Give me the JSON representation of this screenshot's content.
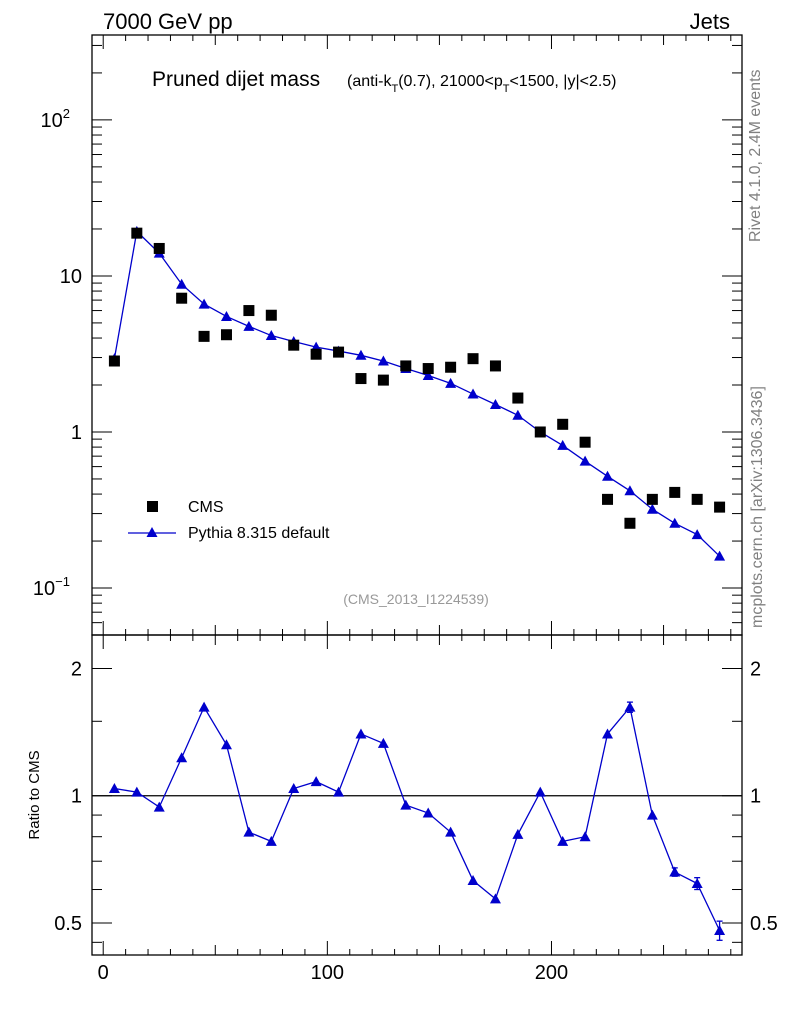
{
  "header": {
    "energy_label": "7000 GeV pp",
    "category_label": "Jets"
  },
  "side": {
    "rivet_label": "Rivet 4.1.0,  2.4M events",
    "site_label": "mcplots.cern.ch [arXiv:1306.3436]"
  },
  "chart_data": [
    {
      "type": "line",
      "title_main": "Pruned dijet mass",
      "title_sub": "(anti-k",
      "title_sub_t": "T",
      "title_sub_mid": "(0.7), 21000<p",
      "title_sub_t2": "T",
      "title_sub_end": "<1500, |y|<2.5)",
      "analysis_id": "(CMS_2013_I1224539)",
      "y_scale": "log",
      "xlim": [
        -5,
        285
      ],
      "ylim": [
        0.05,
        350
      ],
      "y_ticks": [
        {
          "value": 0.1,
          "base": "10",
          "exp": "−1"
        },
        {
          "value": 1,
          "base": "1",
          "exp": ""
        },
        {
          "value": 10,
          "base": "10",
          "exp": ""
        },
        {
          "value": 100,
          "base": "10",
          "exp": "2"
        }
      ],
      "legend_position": "bottom-left",
      "series": [
        {
          "name": "CMS",
          "marker": "square",
          "color": "#000000",
          "x": [
            5,
            15,
            25,
            35,
            45,
            55,
            65,
            75,
            85,
            95,
            105,
            115,
            125,
            135,
            145,
            155,
            165,
            175,
            185,
            195,
            205,
            215,
            225,
            235,
            245,
            255,
            265,
            275
          ],
          "values": [
            2.85,
            18.8,
            15.0,
            7.2,
            4.1,
            4.2,
            6.0,
            5.6,
            3.6,
            3.15,
            3.25,
            2.2,
            2.15,
            2.65,
            2.55,
            2.6,
            2.95,
            2.65,
            1.65,
            1.0,
            1.12,
            0.86,
            0.37,
            0.26,
            0.37,
            0.41,
            0.37,
            0.33
          ]
        },
        {
          "name": "Pythia 8.315 default",
          "marker": "triangle",
          "color": "#0000cc",
          "x": [
            5,
            15,
            25,
            35,
            45,
            55,
            65,
            75,
            85,
            95,
            105,
            115,
            125,
            135,
            145,
            155,
            165,
            175,
            185,
            195,
            205,
            215,
            225,
            235,
            245,
            255,
            265,
            275
          ],
          "values": [
            2.95,
            19.3,
            14.0,
            8.85,
            6.6,
            5.5,
            4.75,
            4.15,
            3.8,
            3.5,
            3.3,
            3.1,
            2.85,
            2.55,
            2.3,
            2.05,
            1.75,
            1.5,
            1.28,
            1.0,
            0.82,
            0.65,
            0.52,
            0.42,
            0.32,
            0.26,
            0.22,
            0.16
          ]
        }
      ]
    },
    {
      "type": "line",
      "ylabel": "Ratio to CMS",
      "y_scale": "log",
      "xlim": [
        -5,
        285
      ],
      "ylim": [
        0.42,
        2.4
      ],
      "y_ticks": [
        {
          "value": 0.5,
          "label": "0.5"
        },
        {
          "value": 1,
          "label": "1"
        },
        {
          "value": 2,
          "label": "2"
        }
      ],
      "x_ticks": [
        {
          "value": 0,
          "label": "0"
        },
        {
          "value": 100,
          "label": "100"
        },
        {
          "value": 200,
          "label": "200"
        }
      ],
      "reference_line": 1,
      "series": [
        {
          "name": "Pythia 8.315 default / CMS",
          "color": "#0000cc",
          "x": [
            5,
            15,
            25,
            35,
            45,
            55,
            65,
            75,
            85,
            95,
            105,
            115,
            125,
            135,
            145,
            155,
            165,
            175,
            185,
            195,
            205,
            215,
            225,
            235,
            245,
            255,
            265,
            275
          ],
          "values": [
            1.04,
            1.02,
            0.94,
            1.23,
            1.62,
            1.32,
            0.82,
            0.78,
            1.04,
            1.08,
            1.02,
            1.4,
            1.33,
            0.95,
            0.91,
            0.82,
            0.63,
            0.57,
            0.81,
            1.02,
            0.78,
            0.8,
            1.4,
            1.62,
            0.9,
            0.66,
            0.62,
            0.48
          ],
          "errors": [
            0,
            0,
            0,
            0,
            0,
            0,
            0,
            0,
            0,
            0,
            0,
            0,
            0,
            0,
            0,
            0,
            0,
            0,
            0,
            0,
            0,
            0,
            0,
            0.045,
            0,
            0.015,
            0.02,
            0.025
          ]
        }
      ]
    }
  ]
}
